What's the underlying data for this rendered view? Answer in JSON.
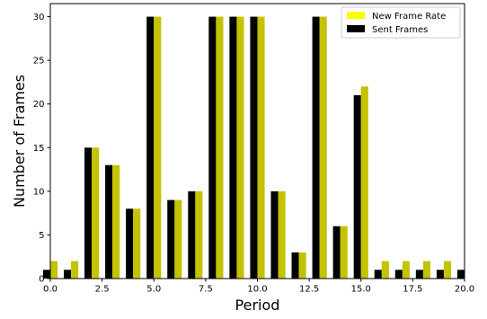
{
  "chart_data": {
    "type": "bar",
    "xlabel": "Period",
    "ylabel": "Number of Frames",
    "xlim": [
      0,
      20
    ],
    "ylim": [
      0,
      31.5
    ],
    "xticks": [
      "0.0",
      "2.5",
      "5.0",
      "7.5",
      "10.0",
      "12.5",
      "15.0",
      "17.5",
      "20.0"
    ],
    "yticks": [
      "0",
      "5",
      "10",
      "15",
      "20",
      "25",
      "30"
    ],
    "grid": false,
    "legend_position": "top-right",
    "x": [
      0,
      1,
      2,
      3,
      4,
      5,
      6,
      7,
      8,
      9,
      10,
      11,
      12,
      13,
      14,
      15,
      16,
      17,
      18,
      19,
      20
    ],
    "series": [
      {
        "name": "New Frame Rate",
        "color": "#c3c300",
        "legend_color": "#ffff00",
        "values": [
          2,
          2,
          15,
          13,
          8,
          30,
          9,
          10,
          30,
          30,
          30,
          10,
          3,
          30,
          6,
          22,
          2,
          2,
          2,
          2,
          null
        ]
      },
      {
        "name": "Sent Frames",
        "color": "#000000",
        "legend_color": "#000000",
        "values": [
          1,
          1,
          15,
          13,
          8,
          30,
          9,
          10,
          30,
          30,
          30,
          10,
          3,
          30,
          6,
          21,
          1,
          1,
          1,
          1,
          1
        ]
      }
    ]
  }
}
